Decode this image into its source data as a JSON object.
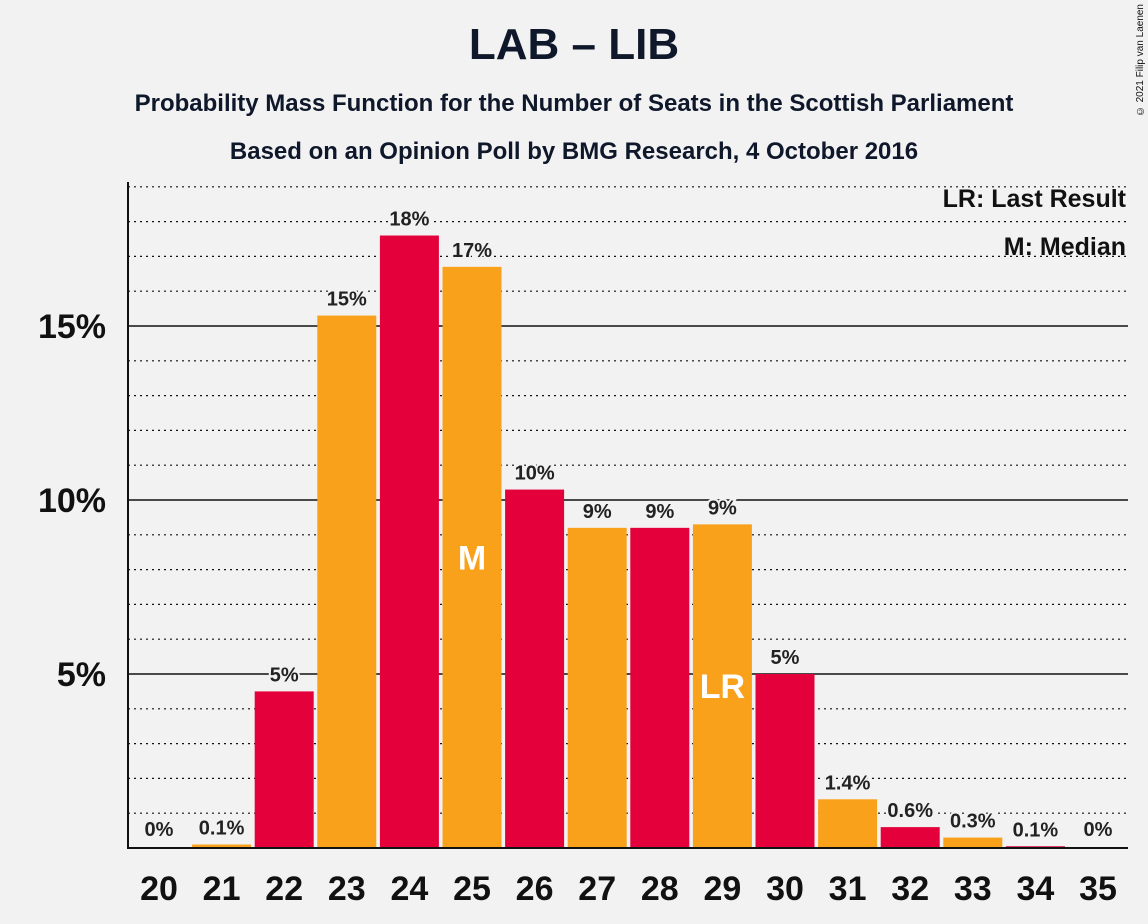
{
  "title": "LAB – LIB",
  "subtitle1": "Probability Mass Function for the Number of Seats in the Scottish Parliament",
  "subtitle2": "Based on an Opinion Poll by BMG Research, 4 October 2016",
  "copyright": "© 2021 Filip van Laenen",
  "legend": {
    "last_result": "LR: Last Result",
    "median": "M: Median"
  },
  "colors": {
    "red": "#e3003b",
    "orange": "#f9a11b",
    "background": "#f2f2f2",
    "axis": "#111111"
  },
  "chart_data": {
    "type": "bar",
    "categories": [
      "20",
      "21",
      "22",
      "23",
      "24",
      "25",
      "26",
      "27",
      "28",
      "29",
      "30",
      "31",
      "32",
      "33",
      "34",
      "35"
    ],
    "values": [
      0,
      0.1,
      4.5,
      15.3,
      17.6,
      16.7,
      10.3,
      9.2,
      9.2,
      9.3,
      5.0,
      1.4,
      0.6,
      0.3,
      0.05,
      0
    ],
    "labels": [
      "0%",
      "0.1%",
      "5%",
      "15%",
      "18%",
      "17%",
      "10%",
      "9%",
      "9%",
      "9%",
      "5%",
      "1.4%",
      "0.6%",
      "0.3%",
      "0.1%",
      "0%"
    ],
    "bar_colors": [
      "red",
      "orange",
      "red",
      "orange",
      "red",
      "orange",
      "red",
      "orange",
      "red",
      "orange",
      "red",
      "orange",
      "red",
      "orange",
      "red",
      "orange"
    ],
    "markers": {
      "25": "M",
      "29": "LR"
    },
    "yticks": [
      5,
      10,
      15
    ],
    "ytick_labels": [
      "5%",
      "10%",
      "15%"
    ],
    "ylim": [
      0,
      19
    ],
    "minor_gridlines": true
  }
}
